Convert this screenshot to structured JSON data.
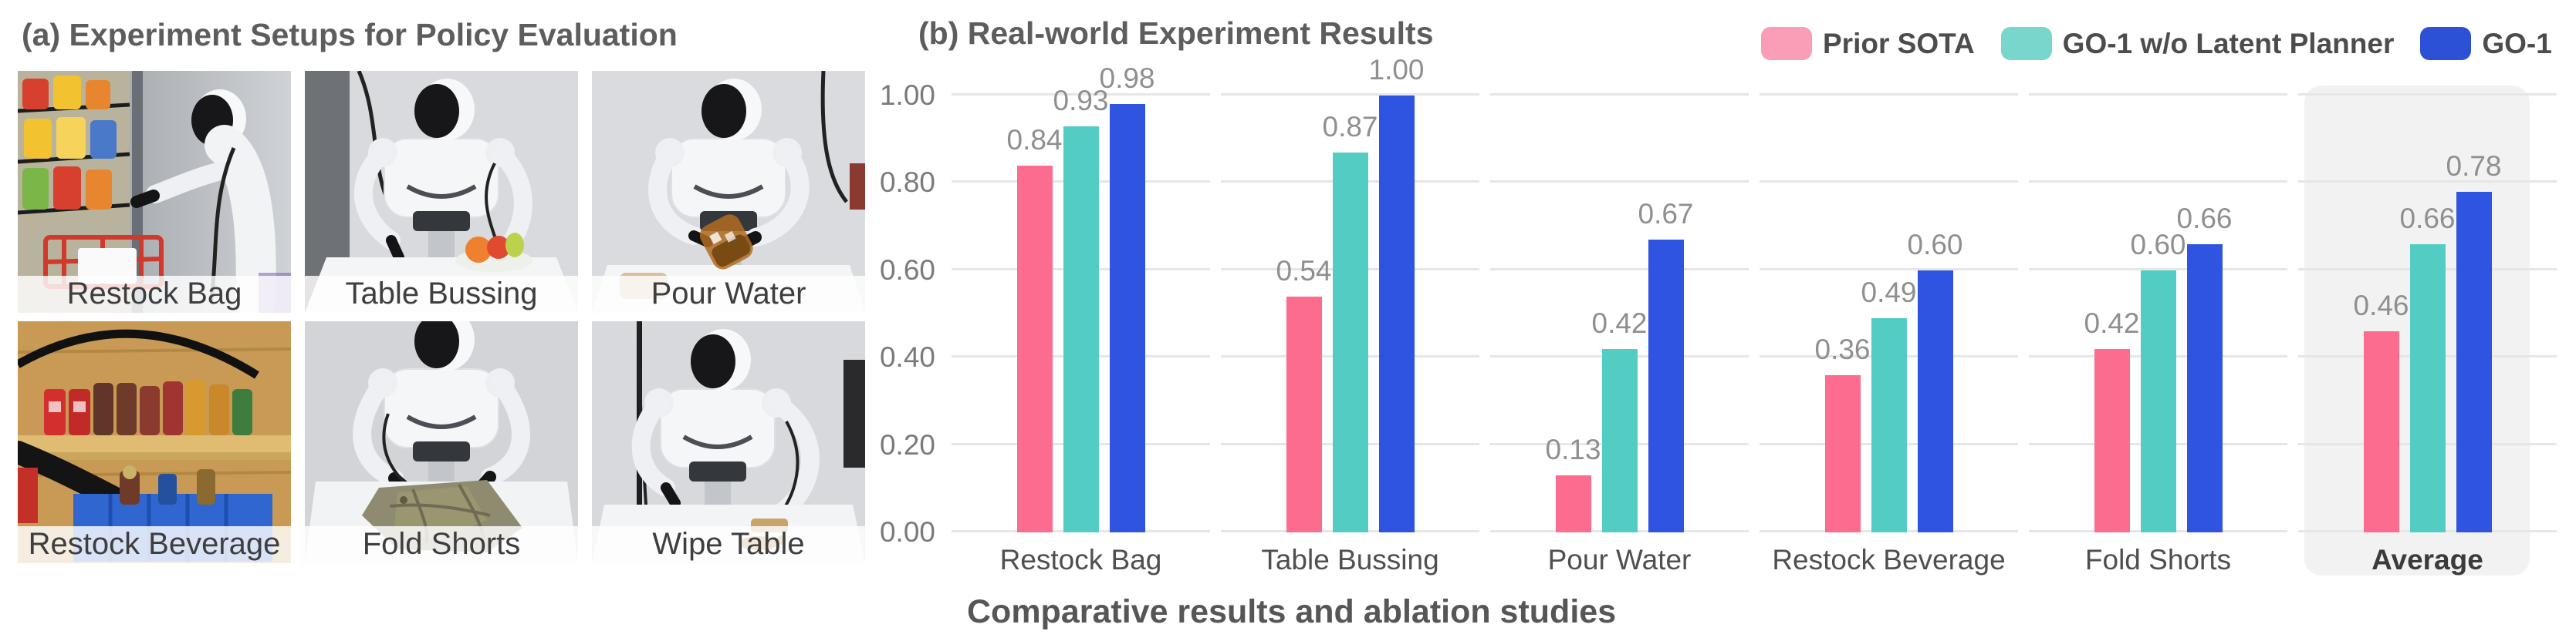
{
  "left_panel": {
    "title": "(a) Experiment Setups for Policy Evaluation",
    "photos": [
      {
        "label": "Restock Bag"
      },
      {
        "label": "Table Bussing"
      },
      {
        "label": "Pour Water"
      },
      {
        "label": "Restock Beverage"
      },
      {
        "label": "Fold Shorts"
      },
      {
        "label": "Wipe Table"
      }
    ]
  },
  "right_panel": {
    "title": "(b) Real-world Experiment Results",
    "caption": "Comparative results and ablation studies",
    "legend": [
      {
        "label": "Prior SOTA",
        "swatch_color": "#fa9db6"
      },
      {
        "label": "GO-1 w/o Latent Planner",
        "swatch_color": "#79d6cd"
      },
      {
        "label": "GO-1",
        "swatch_color": "#2c50d6"
      }
    ]
  },
  "colors": {
    "bar_pink": "#fb6c8e",
    "bar_teal": "#53cdc3",
    "bar_blue": "#2e54e0",
    "gridline": "#e6e6e8",
    "highlight_bg": "#f2f2f3",
    "title_gray": "#5d5d5d",
    "value_label_gray": "#8f8f8f"
  },
  "chart_data": {
    "type": "bar",
    "title": "(b) Real-world Experiment Results",
    "categories": [
      "Restock Bag",
      "Table Bussing",
      "Pour Water",
      "Restock Beverage",
      "Fold Shorts",
      "Average"
    ],
    "series": [
      {
        "name": "Prior SOTA",
        "color": "#fb6c8e",
        "values": [
          0.84,
          0.54,
          0.13,
          0.36,
          0.42,
          0.46
        ]
      },
      {
        "name": "GO-1 w/o Latent Planner",
        "color": "#53cdc3",
        "values": [
          0.93,
          0.87,
          0.42,
          0.49,
          0.6,
          0.66
        ]
      },
      {
        "name": "GO-1",
        "color": "#2e54e0",
        "values": [
          0.98,
          1.0,
          0.67,
          0.6,
          0.66,
          0.78
        ]
      }
    ],
    "ylim": [
      0,
      1.0
    ],
    "yticks": [
      0.0,
      0.2,
      0.4,
      0.6,
      0.8,
      1.0
    ],
    "ytick_labels": [
      "0.00",
      "0.20",
      "0.40",
      "0.60",
      "0.80",
      "1.00"
    ],
    "grid": true,
    "legend_position": "top-right",
    "highlight_category": "Average",
    "value_labels": true,
    "value_label_format": "2dp",
    "xlabel": "",
    "ylabel": ""
  }
}
